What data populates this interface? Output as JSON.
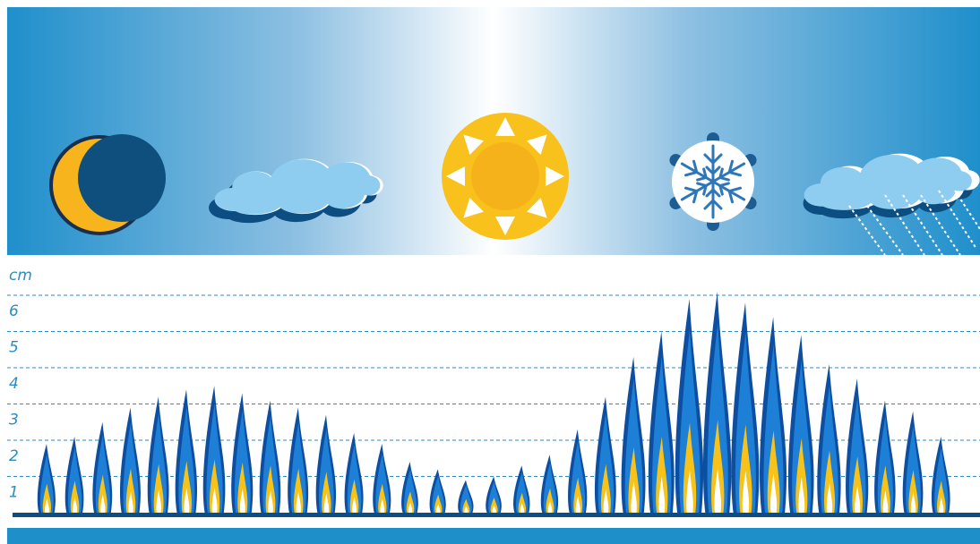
{
  "banner": {
    "icons": [
      "moon-icon",
      "cloud-icon",
      "sun-icon",
      "snowflake-icon",
      "rain-cloud-icon"
    ]
  },
  "colors": {
    "banner_edge": "#1f8fcb",
    "banner_center": "#ffffff",
    "flame_outer": "#0d4ea0",
    "flame_mid": "#1e7fd6",
    "flame_inner": "#f7c21a",
    "flame_core": "#ffffff",
    "gridline": "#2a8dc4",
    "baseline": "#0d4ea0",
    "footer": "#1e8fc9"
  },
  "chart_data": {
    "type": "bar",
    "ylabel": "cm",
    "ylim": [
      0,
      6.5
    ],
    "yticks": [
      1,
      2,
      3,
      4,
      5,
      6
    ],
    "grid": true,
    "values": [
      1.9,
      2.1,
      2.5,
      2.9,
      3.2,
      3.4,
      3.5,
      3.3,
      3.1,
      2.9,
      2.7,
      2.2,
      1.9,
      1.4,
      1.2,
      0.9,
      1.0,
      1.3,
      1.6,
      2.3,
      3.2,
      4.3,
      5.0,
      5.9,
      6.1,
      5.8,
      5.4,
      4.9,
      4.1,
      3.7,
      3.1,
      2.8,
      2.1
    ]
  }
}
